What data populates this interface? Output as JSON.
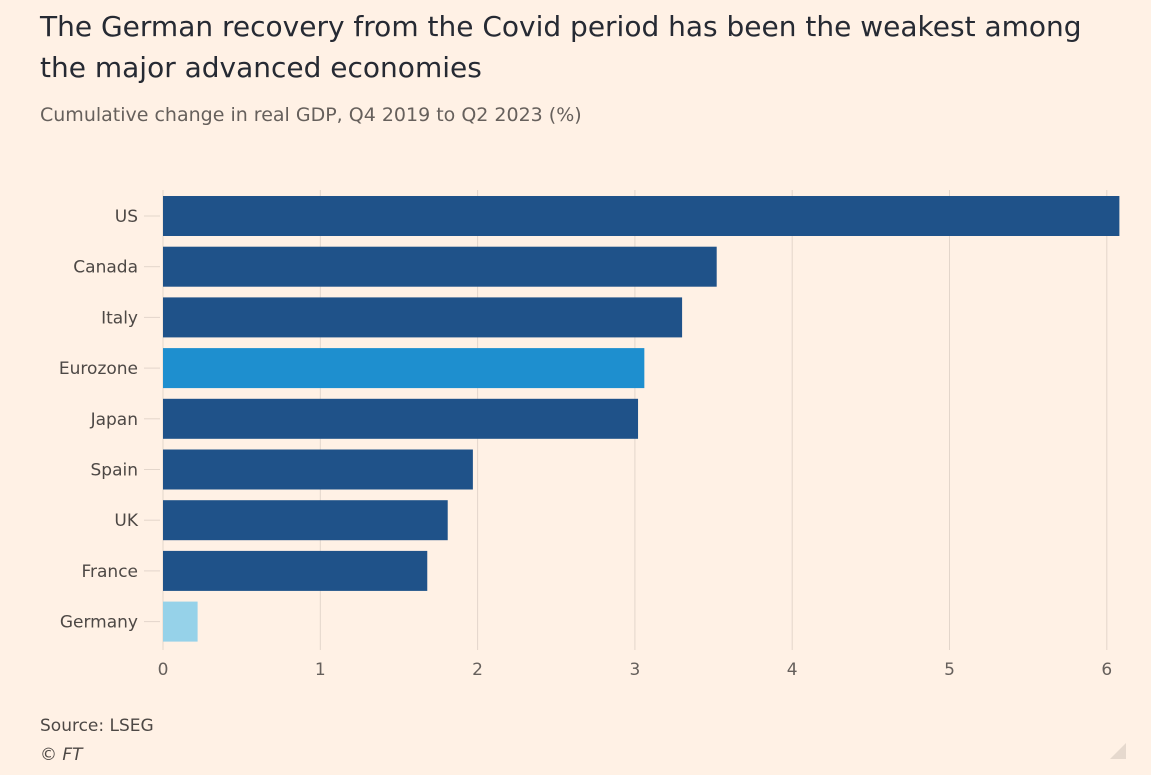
{
  "title": "The German recovery from the Covid period has been the weakest among the major advanced economies",
  "subtitle": "Cumulative change in real GDP, Q4 2019 to Q2 2023 (%)",
  "source": "Source: LSEG",
  "copyright": "© FT",
  "colors": {
    "default_bar": "#1f5289",
    "highlight_bar": "#1e8fcf",
    "focus_bar": "#96d2e9",
    "grid": "#e3d6cb",
    "tick_text": "#66605c",
    "label_text": "#4d4845"
  },
  "chart_data": {
    "type": "bar",
    "orientation": "horizontal",
    "categories": [
      "US",
      "Canada",
      "Italy",
      "Eurozone",
      "Japan",
      "Spain",
      "UK",
      "France",
      "Germany"
    ],
    "values": [
      6.08,
      3.52,
      3.3,
      3.06,
      3.02,
      1.97,
      1.81,
      1.68,
      0.22
    ],
    "bar_colors": [
      "default_bar",
      "default_bar",
      "default_bar",
      "highlight_bar",
      "default_bar",
      "default_bar",
      "default_bar",
      "default_bar",
      "focus_bar"
    ],
    "xlim": [
      0,
      6
    ],
    "xticks": [
      "0",
      "1",
      "2",
      "3",
      "4",
      "5",
      "6"
    ],
    "grid": true,
    "xlabel": "",
    "ylabel": ""
  }
}
